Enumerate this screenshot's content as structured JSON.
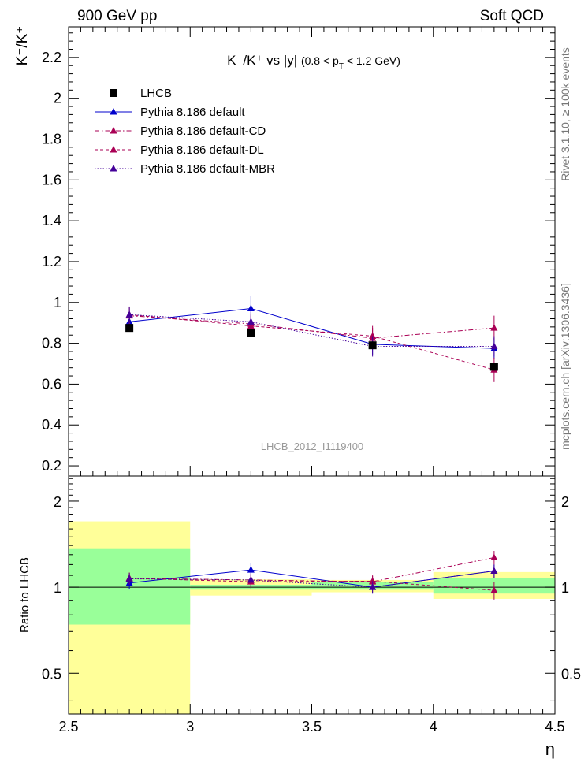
{
  "header": {
    "left_label": "900 GeV pp",
    "right_label": "Soft QCD",
    "title_main": "K⁻/K⁺ vs |y|",
    "title_cut_a": "(0.8 < p",
    "title_cut_sub": "T",
    "title_cut_b": " < 1.2 GeV)",
    "watermark": "LHCB_2012_I1119400"
  },
  "side_labels": {
    "rivet": "Rivet 3.1.10, ≥ 100k events",
    "mcplots": "mcplots.cern.ch [arXiv:1306.3436]"
  },
  "legend": [
    {
      "label": "LHCB",
      "color": "#000000",
      "style": "data"
    },
    {
      "label": "Pythia 8.186 default",
      "color": "#0000cc",
      "style": "solid"
    },
    {
      "label": "Pythia 8.186 default-CD",
      "color": "#aa0055",
      "style": "dashdot"
    },
    {
      "label": "Pythia 8.186 default-DL",
      "color": "#aa0055",
      "style": "dashed"
    },
    {
      "label": "Pythia 8.186 default-MBR",
      "color": "#440099",
      "style": "dotted"
    }
  ],
  "chart_data": {
    "type": "line",
    "title": "K⁻/K⁺ vs |y| (0.8 < pT < 1.2 GeV)",
    "xlabel": "η",
    "ylabel": "K⁻/K⁺",
    "xlim": [
      2.5,
      4.5
    ],
    "ylim": [
      0.15,
      2.35
    ],
    "x_ticks": [
      "2.5",
      "3",
      "3.5",
      "4",
      "4.5"
    ],
    "y_ticks": [
      "0.2",
      "0.4",
      "0.6",
      "0.8",
      "1",
      "1.2",
      "1.4",
      "1.6",
      "1.8",
      "2",
      "2.2"
    ],
    "x": [
      2.75,
      3.25,
      3.75,
      4.25
    ],
    "data": {
      "name": "LHCB",
      "values": [
        0.875,
        0.85,
        0.79,
        0.685
      ],
      "errors": [
        0.02,
        0.02,
        0.02,
        0.03
      ]
    },
    "series": [
      {
        "name": "Pythia 8.186 default",
        "color": "#0000cc",
        "style": "solid",
        "values": [
          0.905,
          0.97,
          0.795,
          0.775
        ],
        "errors": [
          0.04,
          0.06,
          0.05,
          0.05
        ]
      },
      {
        "name": "Pythia 8.186 default-CD",
        "color": "#aa0055",
        "style": "dashdot",
        "values": [
          0.935,
          0.895,
          0.825,
          0.875
        ],
        "errors": [
          0.04,
          0.05,
          0.05,
          0.06
        ]
      },
      {
        "name": "Pythia 8.186 default-DL",
        "color": "#aa0055",
        "style": "dashed",
        "values": [
          0.94,
          0.885,
          0.835,
          0.67
        ],
        "errors": [
          0.04,
          0.05,
          0.05,
          0.06
        ]
      },
      {
        "name": "Pythia 8.186 default-MBR",
        "color": "#440099",
        "style": "dotted",
        "values": [
          0.94,
          0.905,
          0.785,
          0.785
        ],
        "errors": [
          0.04,
          0.05,
          0.05,
          0.05
        ]
      }
    ],
    "ratio": {
      "ylabel": "Ratio to LHCB",
      "ylim": [
        0.36,
        2.45
      ],
      "y_ticks": [
        "0.5",
        "1",
        "2"
      ],
      "y_tick_values": [
        0.5,
        1,
        2
      ],
      "bands": [
        {
          "xlo": 2.5,
          "xhi": 3.0,
          "green": [
            0.74,
            1.36
          ],
          "yellow": [
            0.36,
            1.7
          ]
        },
        {
          "xlo": 3.0,
          "xhi": 3.5,
          "green": [
            0.98,
            1.02
          ],
          "yellow": [
            0.935,
            1.065
          ]
        },
        {
          "xlo": 3.5,
          "xhi": 4.0,
          "green": [
            0.98,
            1.04
          ],
          "yellow": [
            0.96,
            1.06
          ]
        },
        {
          "xlo": 4.0,
          "xhi": 4.5,
          "green": [
            0.95,
            1.08
          ],
          "yellow": [
            0.91,
            1.13
          ]
        }
      ],
      "series": [
        {
          "name": "Pythia 8.186 default",
          "values": [
            1.035,
            1.15,
            1.0,
            1.14
          ],
          "errors": [
            0.05,
            0.06,
            0.05,
            0.06
          ]
        },
        {
          "name": "Pythia 8.186 default-CD",
          "values": [
            1.075,
            1.06,
            1.045,
            1.27
          ],
          "errors": [
            0.05,
            0.06,
            0.05,
            0.07
          ]
        },
        {
          "name": "Pythia 8.186 default-DL",
          "values": [
            1.075,
            1.045,
            1.05,
            0.975
          ],
          "errors": [
            0.05,
            0.06,
            0.05,
            0.07
          ]
        },
        {
          "name": "Pythia 8.186 default-MBR",
          "values": [
            1.07,
            1.06,
            1.0,
            1.14
          ],
          "errors": [
            0.05,
            0.06,
            0.05,
            0.06
          ]
        }
      ]
    }
  }
}
